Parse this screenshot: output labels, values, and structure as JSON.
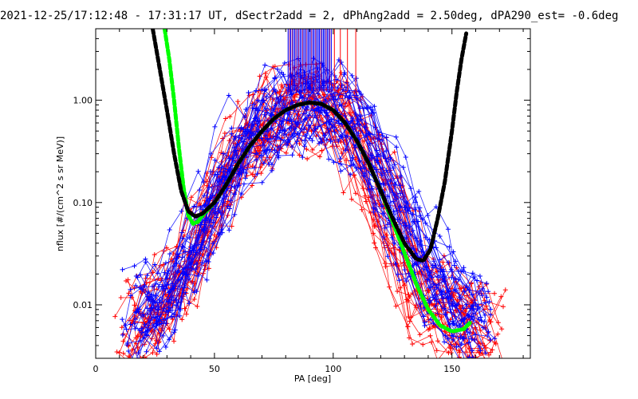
{
  "chart_data": {
    "type": "scatter",
    "title": "2021-12-25/17:12:48 - 17:31:17 UT, dSectr2add = 2, dPhAng2add = 2.50deg, dPA290_est=  -0.6deg",
    "xlabel": "PA [deg]",
    "ylabel": "nflux [#/(cm^2 s sr MeV)]",
    "xlim": [
      0,
      183
    ],
    "ylim": [
      0.003,
      5
    ],
    "yscale": "log",
    "grid": false,
    "x_ticks": [
      0,
      50,
      100,
      150
    ],
    "x_tick_labels": [
      "0",
      "50",
      "100",
      "150"
    ],
    "y_ticks": [
      0.01,
      0.1,
      1.0
    ],
    "y_tick_labels": [
      "0.01",
      "0.10",
      "1.00"
    ],
    "colors": {
      "red": "#ff0000",
      "blue": "#0000ff",
      "purple": "#800080",
      "green": "#00ff00",
      "black": "#000000"
    },
    "series": [
      {
        "color": "red",
        "style": "line+plus",
        "x": [
          16,
          20,
          25,
          30,
          35,
          40,
          45,
          50,
          55,
          60,
          65,
          70,
          75,
          80,
          85,
          90,
          95,
          100,
          105,
          110,
          115,
          120,
          125,
          130,
          135,
          140,
          145,
          150,
          155,
          160,
          165
        ],
        "y": [
          0.006,
          0.007,
          0.008,
          0.011,
          0.016,
          0.028,
          0.05,
          0.09,
          0.16,
          0.26,
          0.38,
          0.5,
          0.63,
          0.74,
          0.82,
          0.86,
          0.83,
          0.74,
          0.58,
          0.4,
          0.24,
          0.13,
          0.06,
          0.03,
          0.016,
          0.011,
          0.009,
          0.008,
          0.007,
          0.006,
          0.005
        ]
      },
      {
        "color": "blue",
        "style": "line+plus",
        "x": [
          15,
          20,
          25,
          30,
          35,
          40,
          45,
          50,
          55,
          60,
          65,
          70,
          75,
          80,
          85,
          90,
          95,
          100,
          105,
          110,
          115,
          120,
          125,
          130,
          135,
          140,
          145,
          150,
          155,
          160
        ],
        "y": [
          0.007,
          0.008,
          0.01,
          0.014,
          0.022,
          0.04,
          0.07,
          0.13,
          0.22,
          0.34,
          0.48,
          0.6,
          0.72,
          0.82,
          0.88,
          0.9,
          0.87,
          0.78,
          0.62,
          0.44,
          0.28,
          0.16,
          0.08,
          0.045,
          0.028,
          0.018,
          0.013,
          0.01,
          0.008,
          0.007
        ]
      },
      {
        "color": "green",
        "style": "thick-dashed",
        "x": [
          29,
          31,
          33,
          35,
          37,
          39,
          41,
          43,
          45,
          50,
          55,
          60,
          65,
          70,
          75,
          80,
          85,
          90,
          95,
          100,
          105,
          110,
          115,
          120,
          125,
          130,
          135,
          140,
          145,
          150,
          155,
          158
        ],
        "y": [
          5,
          2.5,
          1.0,
          0.35,
          0.14,
          0.075,
          0.062,
          0.065,
          0.075,
          0.1,
          0.15,
          0.24,
          0.36,
          0.5,
          0.66,
          0.8,
          0.9,
          0.95,
          0.92,
          0.8,
          0.6,
          0.4,
          0.24,
          0.13,
          0.065,
          0.032,
          0.016,
          0.009,
          0.0063,
          0.0055,
          0.0058,
          0.0068
        ]
      },
      {
        "color": "black",
        "style": "thick-dashed",
        "x": [
          24,
          27,
          30,
          33,
          36,
          39,
          42,
          45,
          50,
          55,
          60,
          65,
          70,
          75,
          80,
          85,
          90,
          95,
          100,
          105,
          110,
          115,
          120,
          125,
          130,
          135,
          138,
          141,
          144,
          147,
          150,
          152,
          154,
          156
        ],
        "y": [
          5,
          2.0,
          0.8,
          0.3,
          0.13,
          0.082,
          0.073,
          0.078,
          0.1,
          0.15,
          0.24,
          0.36,
          0.5,
          0.66,
          0.8,
          0.9,
          0.95,
          0.92,
          0.8,
          0.6,
          0.4,
          0.24,
          0.13,
          0.07,
          0.04,
          0.028,
          0.027,
          0.035,
          0.07,
          0.16,
          0.5,
          1.2,
          2.5,
          4.5
        ]
      }
    ],
    "vertical_markers": {
      "y_range": [
        1.22,
        5
      ],
      "x": [
        81,
        81.6,
        82.1,
        82.7,
        83.2,
        83.8,
        84.3,
        84.9,
        85.4,
        86,
        86.5,
        87.1,
        87.6,
        88.2,
        88.7,
        89.3,
        89.8,
        90.4,
        90.9,
        91.5,
        92,
        92.6,
        93.1,
        93.7,
        94.2,
        94.8,
        95.3,
        95.9,
        96.4,
        97,
        97.5,
        98.1,
        98.6,
        99.2,
        100.5,
        103,
        106,
        109.5
      ],
      "colors": [
        "blue",
        "purple",
        "blue",
        "purple",
        "blue",
        "blue",
        "purple",
        "blue",
        "purple",
        "blue",
        "blue",
        "purple",
        "blue",
        "blue",
        "purple",
        "blue",
        "blue",
        "blue",
        "purple",
        "blue",
        "blue",
        "purple",
        "blue",
        "blue",
        "blue",
        "purple",
        "blue",
        "blue",
        "blue",
        "purple",
        "blue",
        "blue",
        "purple",
        "blue",
        "red",
        "red",
        "red",
        "red"
      ]
    }
  }
}
